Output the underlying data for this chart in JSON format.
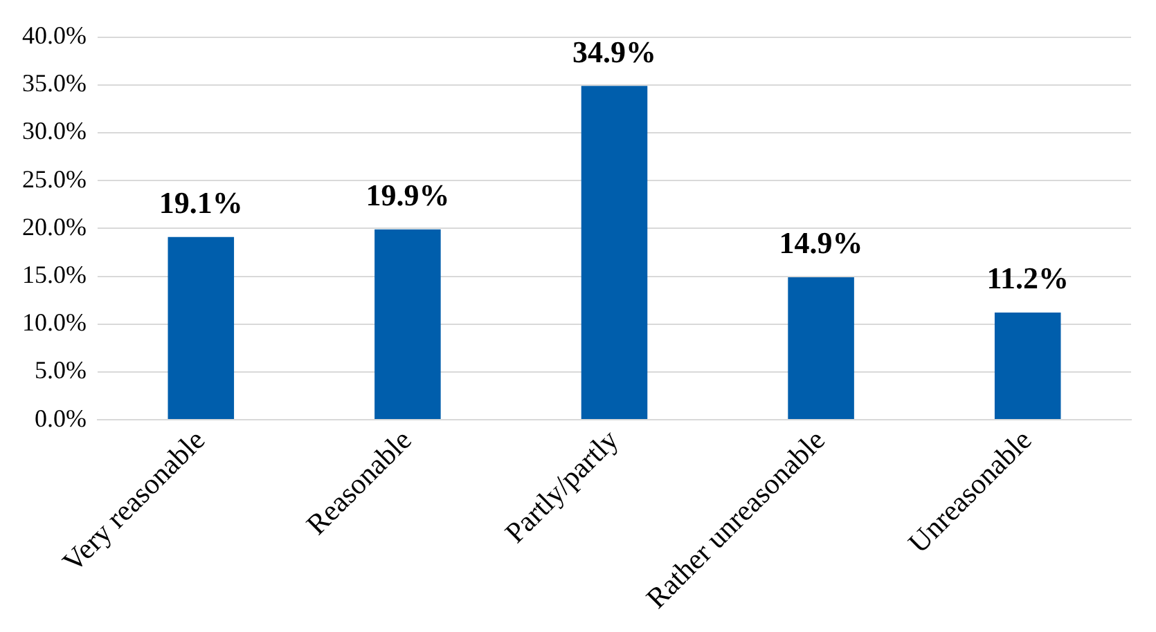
{
  "chart_data": {
    "type": "bar",
    "categories": [
      "Very reasonable",
      "Reasonable",
      "Partly/partly",
      "Rather unreasonable",
      "Unreasonable"
    ],
    "values": [
      19.1,
      19.9,
      34.9,
      14.9,
      11.2
    ],
    "value_labels": [
      "19.1%",
      "19.9%",
      "34.9%",
      "14.9%",
      "11.2%"
    ],
    "color": "#005eac",
    "ylim": [
      0,
      40
    ],
    "yticks": [
      {
        "value": 0,
        "label": "0.0%"
      },
      {
        "value": 5,
        "label": "5.0%"
      },
      {
        "value": 10,
        "label": "10.0%"
      },
      {
        "value": 15,
        "label": "15.0%"
      },
      {
        "value": 20,
        "label": "20.0%"
      },
      {
        "value": 25,
        "label": "25.0%"
      },
      {
        "value": 30,
        "label": "30.0%"
      },
      {
        "value": 35,
        "label": "35.0%"
      },
      {
        "value": 40,
        "label": "40.0%"
      }
    ],
    "grid": "y",
    "legend": false
  }
}
